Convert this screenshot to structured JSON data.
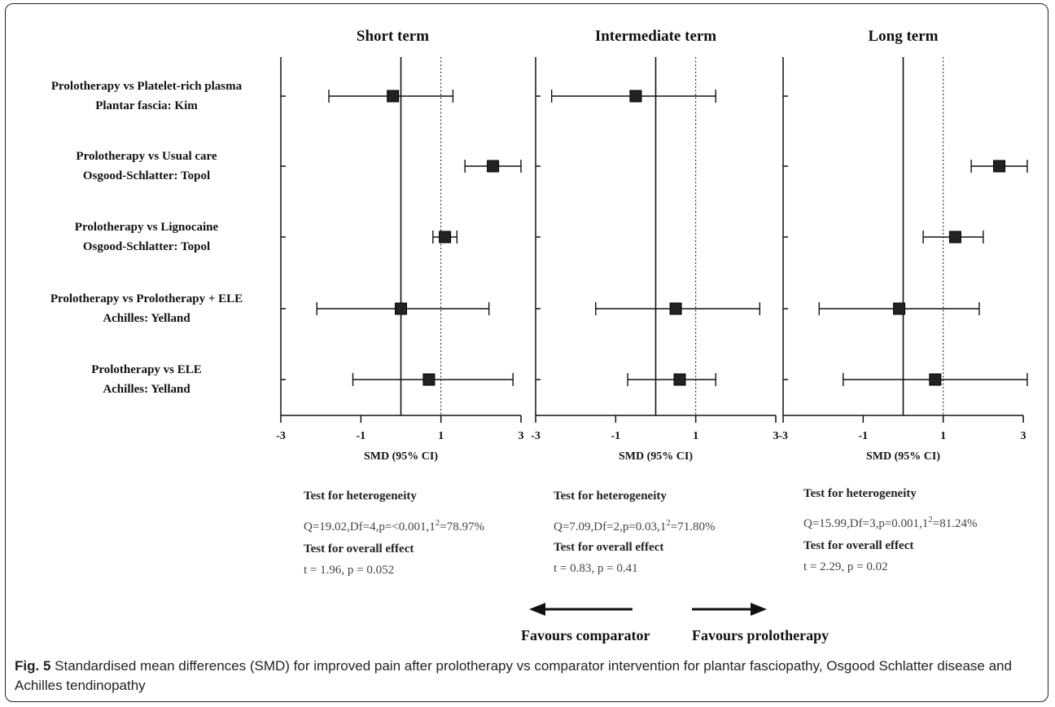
{
  "chart_data": {
    "type": "forest",
    "x_axis": {
      "label": "SMD (95% CI)",
      "ticks": [
        -3,
        -1,
        1,
        3
      ],
      "range": [
        -3,
        3
      ],
      "null_line": 0,
      "dotted_line": 1
    },
    "studies": [
      {
        "comparison": "Prolotherapy  vs Platelet-rich plasma",
        "site": "Plantar fascia: Kim"
      },
      {
        "comparison": "Prolotherapy vs Usual care",
        "site": "Osgood-Schlatter: Topol"
      },
      {
        "comparison": "Prolotherapy vs Lignocaine",
        "site": "Osgood-Schlatter: Topol"
      },
      {
        "comparison": "Prolotherapy  vs Prolotherapy + ELE",
        "site": "Achilles: Yelland"
      },
      {
        "comparison": "Prolotherapy  vs ELE",
        "site": "Achilles: Yelland"
      }
    ],
    "panels": [
      {
        "title": "Short term",
        "estimates": [
          {
            "study": 0,
            "smd": -0.2,
            "lower": -1.8,
            "upper": 1.3
          },
          {
            "study": 1,
            "smd": 2.3,
            "lower": 1.6,
            "upper": 3.0
          },
          {
            "study": 2,
            "smd": 1.1,
            "lower": 0.8,
            "upper": 1.4
          },
          {
            "study": 3,
            "smd": 0.0,
            "lower": -2.1,
            "upper": 2.2
          },
          {
            "study": 4,
            "smd": 0.7,
            "lower": -1.2,
            "upper": 2.8
          }
        ],
        "heterogeneity_label": "Test for heterogeneity",
        "heterogeneity_pre": "Q=19.02,Df=4,p=<0.001,1",
        "heterogeneity_sup": "2",
        "heterogeneity_post": "=78.97%",
        "overall_label": "Test for overall effect",
        "overall_value": "t = 1.96,  p = 0.052"
      },
      {
        "title": "Intermediate term",
        "estimates": [
          {
            "study": 0,
            "smd": -0.5,
            "lower": -2.6,
            "upper": 1.5
          },
          {
            "study": 3,
            "smd": 0.5,
            "lower": -1.5,
            "upper": 2.6
          },
          {
            "study": 4,
            "smd": 0.6,
            "lower": -0.7,
            "upper": 1.5
          }
        ],
        "heterogeneity_label": "Test for heterogeneity",
        "heterogeneity_pre": "Q=7.09,Df=2,p=0.03,1",
        "heterogeneity_sup": "2",
        "heterogeneity_post": "=71.80%",
        "overall_label": "Test for overall effect",
        "overall_value": "t = 0.83,  p = 0.41"
      },
      {
        "title": "Long term",
        "estimates": [
          {
            "study": 1,
            "smd": 2.4,
            "lower": 1.7,
            "upper": 3.1
          },
          {
            "study": 2,
            "smd": 1.3,
            "lower": 0.5,
            "upper": 2.0
          },
          {
            "study": 3,
            "smd": -0.1,
            "lower": -2.1,
            "upper": 1.9
          },
          {
            "study": 4,
            "smd": 0.8,
            "lower": -1.5,
            "upper": 3.1
          }
        ],
        "heterogeneity_label": "Test for heterogeneity",
        "heterogeneity_pre": "Q=15.99,Df=3,p=0.001,1",
        "heterogeneity_sup": "2",
        "heterogeneity_post": "=81.24%",
        "overall_label": "Test for overall effect",
        "overall_value": "t = 2.29,  p = 0.02"
      }
    ],
    "favours_left": "Favours comparator",
    "favours_right": "Favours prolotherapy"
  },
  "caption": {
    "label": "Fig. 5",
    "text": " Standardised mean differences (SMD) for improved pain after prolotherapy vs comparator intervention for plantar fasciopathy, Osgood Schlatter disease and Achilles tendinopathy"
  }
}
